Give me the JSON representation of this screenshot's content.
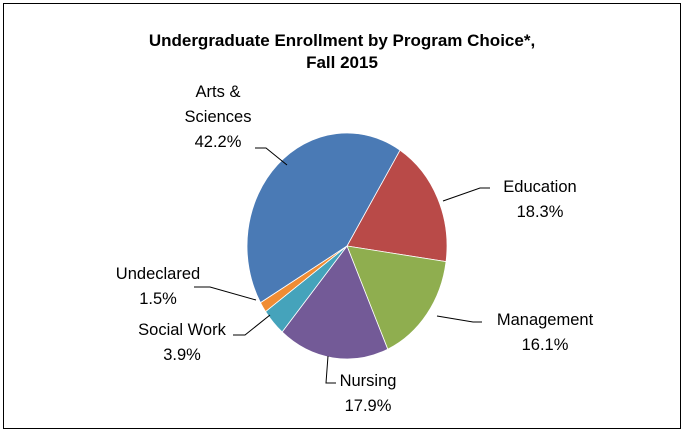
{
  "chart_data": {
    "type": "pie",
    "title": "Undergraduate Enrollment by Program Choice*,\nFall 2015",
    "categories": [
      "Education",
      "Management",
      "Nursing",
      "Social Work",
      "Undeclared",
      "Arts &\nSciences"
    ],
    "values": [
      18.3,
      16.1,
      17.9,
      3.9,
      1.5,
      42.2
    ],
    "value_labels": [
      "18.3%",
      "16.1%",
      "17.9%",
      "3.9%",
      "1.5%",
      "42.2%"
    ],
    "colors": [
      "#b94a48",
      "#8fae4f",
      "#735a97",
      "#45a3bb",
      "#ef8c34",
      "#4a7ab5"
    ]
  }
}
